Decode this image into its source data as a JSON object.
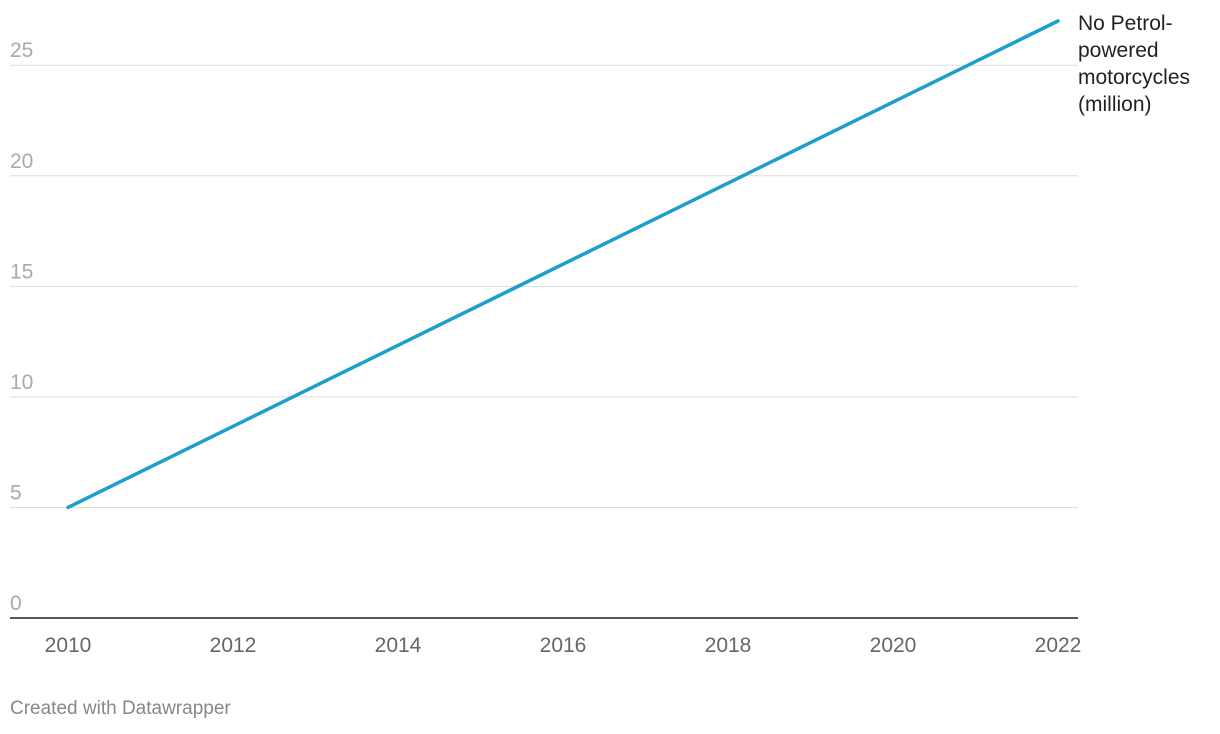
{
  "chart_data": {
    "type": "line",
    "x": [
      2010,
      2022
    ],
    "series": [
      {
        "name": "No Petrol-powered motorcycles (million)",
        "color": "#1d9fcb",
        "values": [
          5,
          27
        ]
      }
    ],
    "xlim": [
      2010,
      2022
    ],
    "xticks": [
      2010,
      2012,
      2014,
      2016,
      2018,
      2020,
      2022
    ],
    "ylim": [
      0,
      27
    ],
    "yticks": [
      0,
      5,
      10,
      15,
      20,
      25
    ],
    "grid": true,
    "credit": "Created with Datawrapper"
  }
}
